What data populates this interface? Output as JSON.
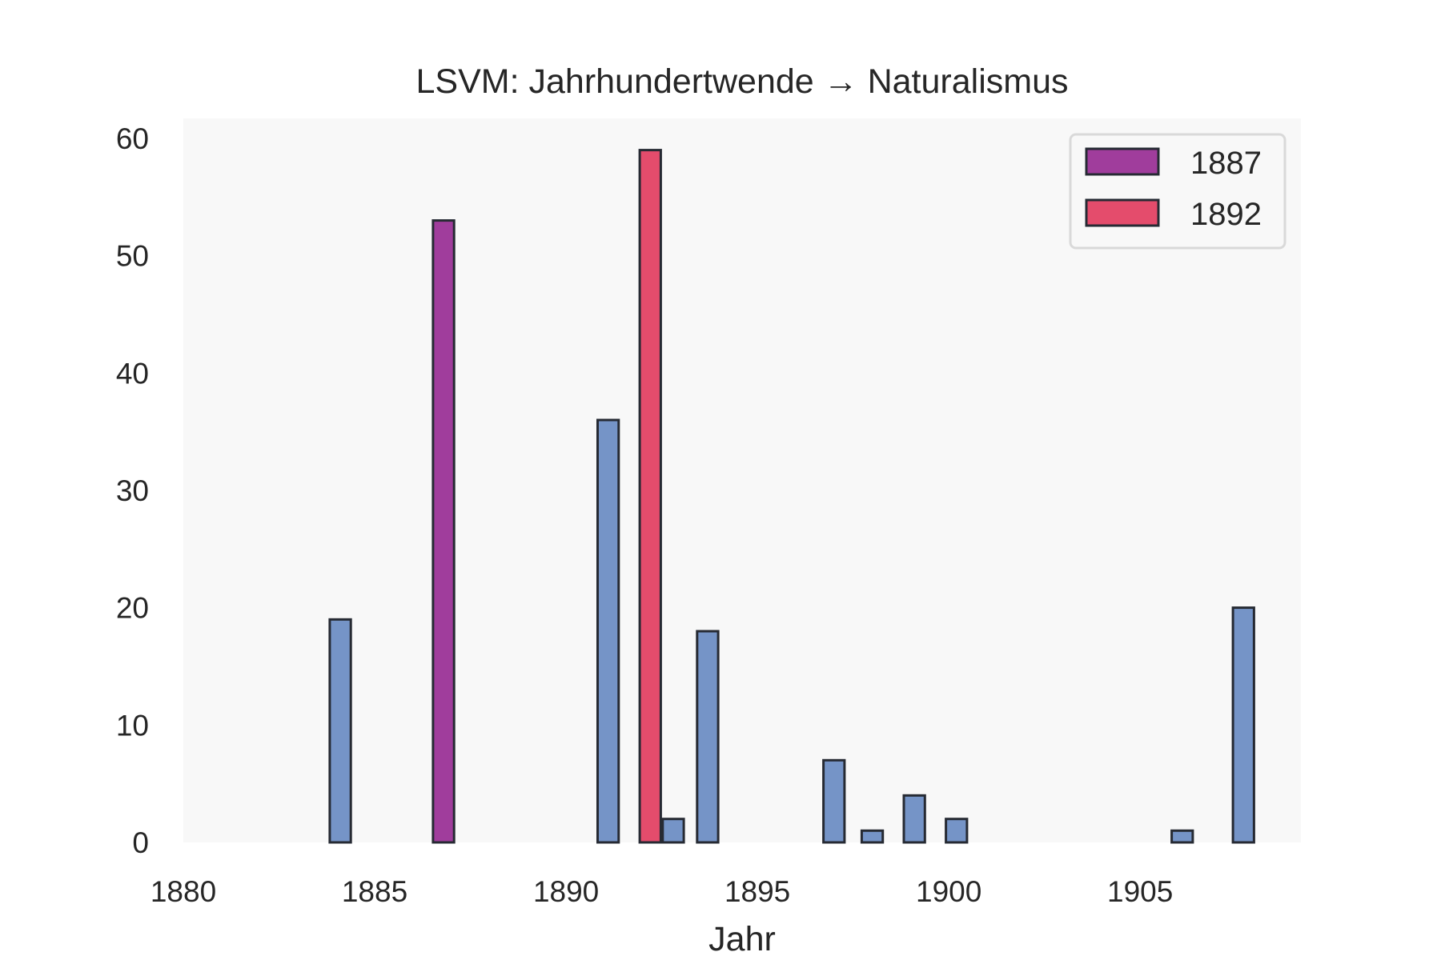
{
  "chart_data": {
    "type": "bar",
    "title": "LSVM: Jahrhundertwende → Naturalismus",
    "xlabel": "Jahr",
    "ylabel": "",
    "xlim": [
      1880,
      1909.2
    ],
    "ylim": [
      0,
      61.7
    ],
    "xticks": [
      "1880",
      "1885",
      "1890",
      "1895",
      "1900",
      "1905"
    ],
    "yticks": [
      "0",
      "10",
      "20",
      "30",
      "40",
      "50",
      "60"
    ],
    "grid": false,
    "legend_position": "top-right",
    "bar_width_years": 0.55,
    "colors": {
      "default": "#7594c7",
      "1887": "#a03d9c",
      "1892": "#e44c6c",
      "edge": "#262a33",
      "plot_bg": "#f8f8f8"
    },
    "legend": [
      {
        "label": "1887",
        "color": "#a03d9c"
      },
      {
        "label": "1892",
        "color": "#e44c6c"
      }
    ],
    "bars": [
      {
        "x": 1884.1,
        "value": 19,
        "series": "default"
      },
      {
        "x": 1886.8,
        "value": 53,
        "series": "1887"
      },
      {
        "x": 1891.1,
        "value": 36,
        "series": "default"
      },
      {
        "x": 1892.2,
        "value": 59,
        "series": "1892"
      },
      {
        "x": 1892.8,
        "value": 2,
        "series": "default"
      },
      {
        "x": 1893.7,
        "value": 18,
        "series": "default"
      },
      {
        "x": 1897.0,
        "value": 7,
        "series": "default"
      },
      {
        "x": 1898.0,
        "value": 1,
        "series": "default"
      },
      {
        "x": 1899.1,
        "value": 4,
        "series": "default"
      },
      {
        "x": 1900.2,
        "value": 2,
        "series": "default"
      },
      {
        "x": 1906.1,
        "value": 1,
        "series": "default"
      },
      {
        "x": 1907.7,
        "value": 20,
        "series": "default"
      }
    ]
  }
}
